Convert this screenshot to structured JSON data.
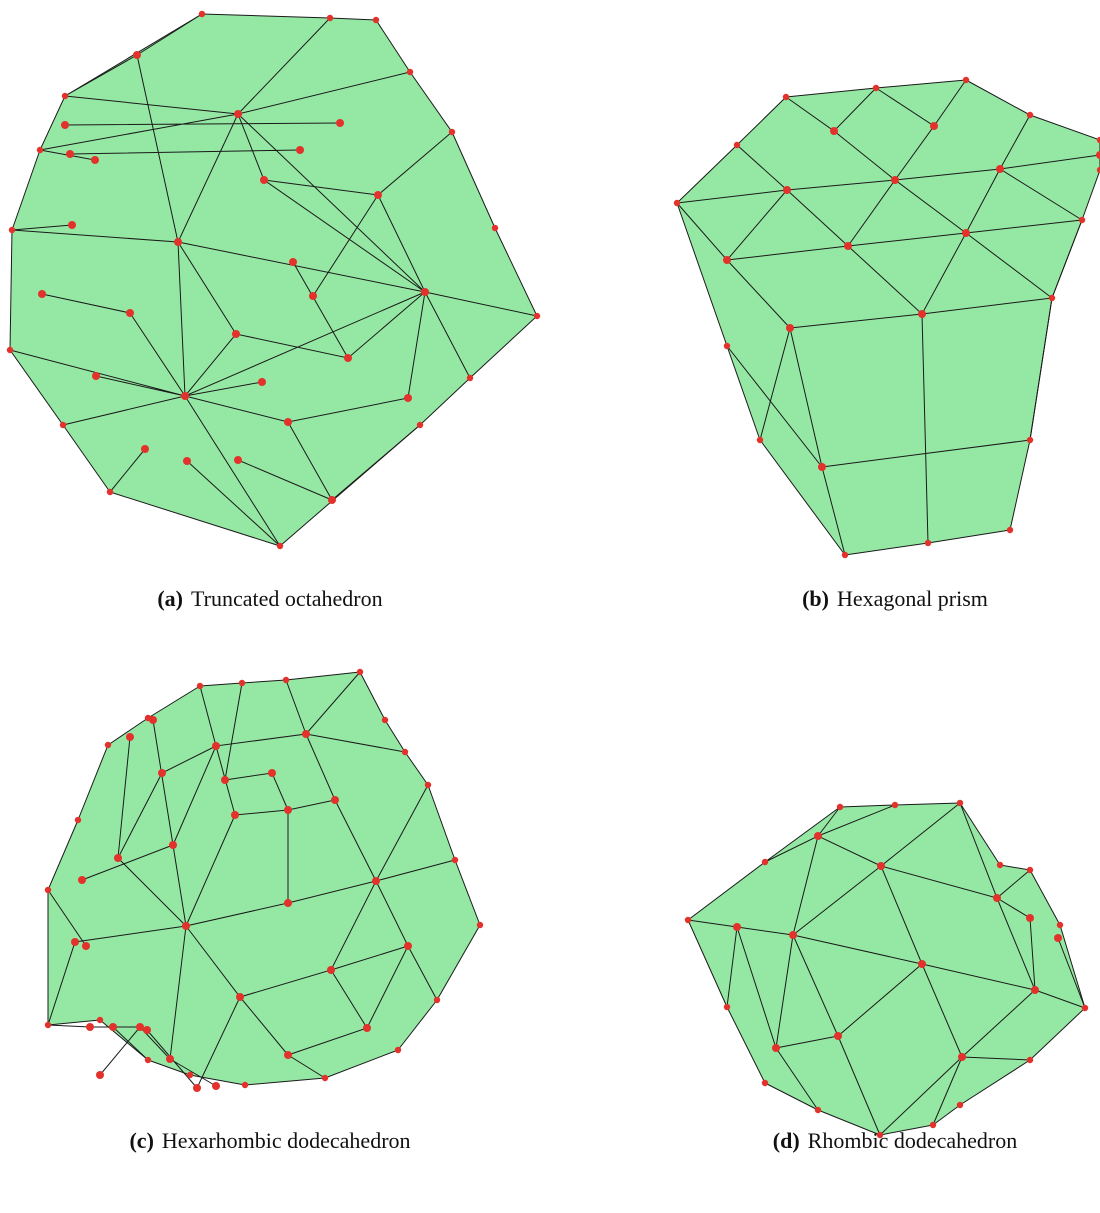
{
  "figures": [
    {
      "label": "(a)",
      "caption": "Truncated octahedron"
    },
    {
      "label": "(b)",
      "caption": "Hexagonal prism"
    },
    {
      "label": "(c)",
      "caption": "Hexarhombic dodecahedron"
    },
    {
      "label": "(d)",
      "caption": "Rhombic dodecahedron"
    }
  ]
}
